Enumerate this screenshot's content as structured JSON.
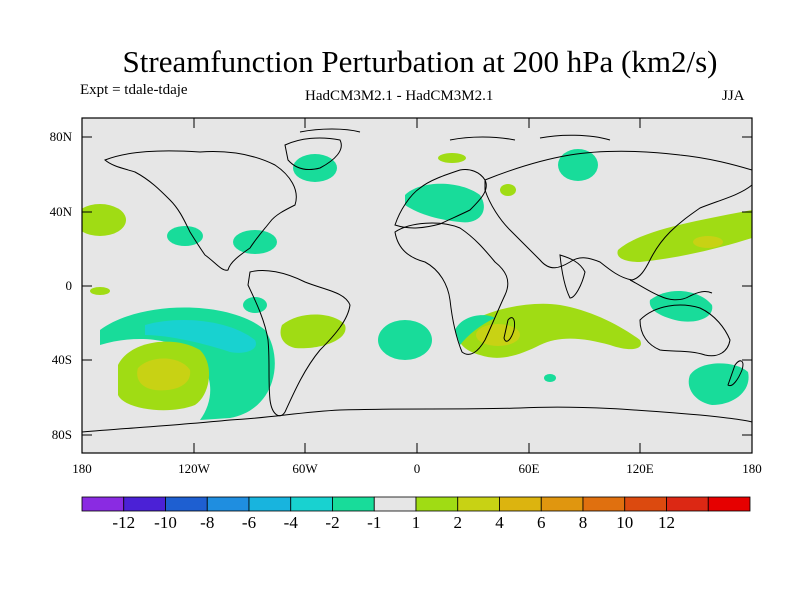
{
  "title": "Streamfunction Perturbation at 200 hPa (km2/s)",
  "experiment_label": "Expt = tdale-tdaje",
  "model_label": "HadCM3M2.1 - HadCM3M2.1",
  "season_label": "JJA",
  "lat_ticks": [
    "80N",
    "40N",
    "0",
    "40S",
    "80S"
  ],
  "lon_ticks": [
    "180",
    "120W",
    "60W",
    "0",
    "60E",
    "120E",
    "180"
  ],
  "colorbar": {
    "colors": [
      "#8a2be2",
      "#4b21d6",
      "#1e5fd1",
      "#1f8ee0",
      "#18b4de",
      "#18d2d0",
      "#18dc9a",
      "#e6e6e6",
      "#a0dc14",
      "#c8d214",
      "#dcb40f",
      "#e0960f",
      "#e0700f",
      "#dc4a0f",
      "#dc2814",
      "#e60000"
    ],
    "labels": [
      "-12",
      "-10",
      "-8",
      "-6",
      "-4",
      "-2",
      "-1",
      "1",
      "2",
      "4",
      "6",
      "8",
      "10",
      "12"
    ]
  },
  "colors": {
    "background": "#e6e6e6",
    "neg1": "#18dc9a",
    "neg2": "#18d2d0",
    "pos1": "#a0dc14",
    "pos2": "#c8d214",
    "pos4": "#dcb40f"
  }
}
